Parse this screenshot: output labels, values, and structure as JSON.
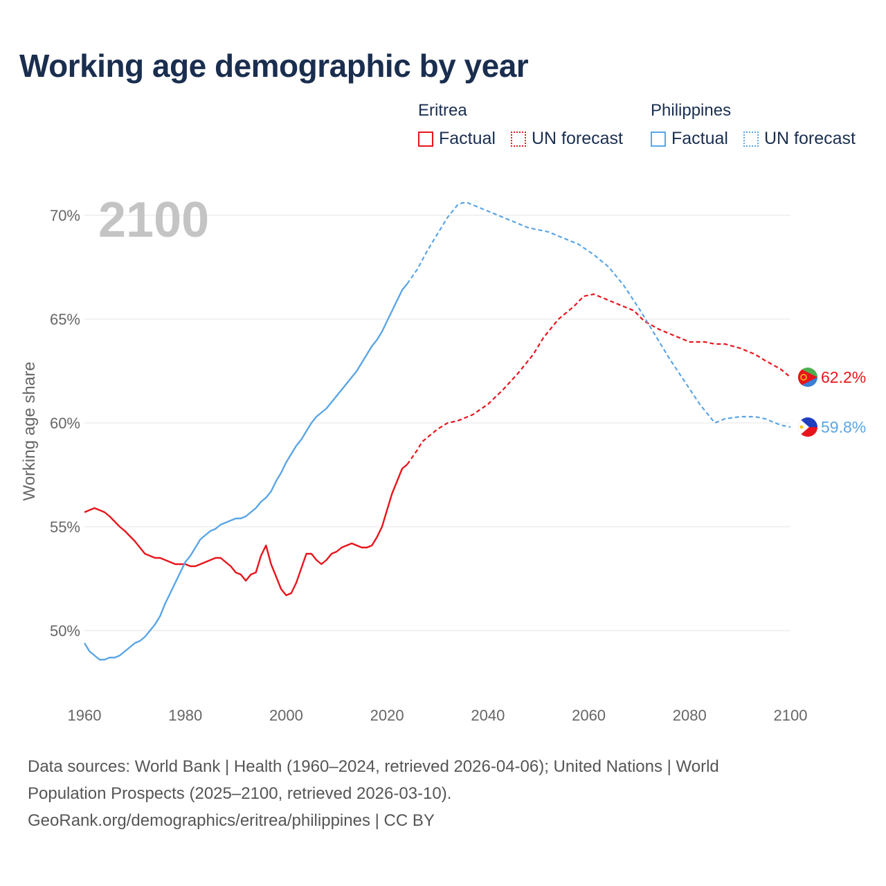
{
  "title": "Working age demographic by year",
  "legend": {
    "groups": [
      {
        "country": "Eritrea",
        "factual_label": "Factual",
        "forecast_label": "UN forecast",
        "color": "#e8141b"
      },
      {
        "country": "Philippines",
        "factual_label": "Factual",
        "forecast_label": "UN forecast",
        "color": "#5aa5e6"
      }
    ]
  },
  "year_display": "2100",
  "footer": {
    "line1": "Data sources: World Bank | Health (1960–2024, retrieved 2026-04-06); United Nations | World",
    "line2": "Population Prospects (2025–2100, retrieved 2026-03-10).",
    "line3": "GeoRank.org/demographics/eritrea/philippines | CC BY"
  },
  "chart_data": {
    "type": "line",
    "title": "Working age demographic by year",
    "xlabel": "",
    "ylabel": "Working age share",
    "xlim": [
      1960,
      2100
    ],
    "ylim": [
      47,
      72
    ],
    "x_ticks": [
      1960,
      1980,
      2000,
      2020,
      2040,
      2060,
      2080,
      2100
    ],
    "x_tick_labels": [
      "1960",
      "1980",
      "2000",
      "2020",
      "2040",
      "2060",
      "2080",
      "2100"
    ],
    "y_ticks": [
      50,
      55,
      60,
      65,
      70
    ],
    "y_tick_labels": [
      "50%",
      "55%",
      "60%",
      "65%",
      "70%"
    ],
    "grid": true,
    "legend_position": "top-right",
    "series": [
      {
        "name": "Eritrea",
        "color": "#e8141b",
        "end_label": "62.2%",
        "factual": [
          [
            1960,
            55.7
          ],
          [
            1962,
            55.9
          ],
          [
            1964,
            55.7
          ],
          [
            1965,
            55.5
          ],
          [
            1967,
            55.0
          ],
          [
            1968,
            54.8
          ],
          [
            1970,
            54.3
          ],
          [
            1971,
            54.0
          ],
          [
            1972,
            53.7
          ],
          [
            1974,
            53.5
          ],
          [
            1975,
            53.5
          ],
          [
            1977,
            53.3
          ],
          [
            1978,
            53.2
          ],
          [
            1980,
            53.2
          ],
          [
            1981,
            53.1
          ],
          [
            1982,
            53.1
          ],
          [
            1984,
            53.3
          ],
          [
            1986,
            53.5
          ],
          [
            1987,
            53.5
          ],
          [
            1988,
            53.3
          ],
          [
            1989,
            53.1
          ],
          [
            1990,
            52.8
          ],
          [
            1991,
            52.7
          ],
          [
            1992,
            52.4
          ],
          [
            1993,
            52.7
          ],
          [
            1994,
            52.8
          ],
          [
            1995,
            53.6
          ],
          [
            1996,
            54.1
          ],
          [
            1997,
            53.2
          ],
          [
            1998,
            52.6
          ],
          [
            1999,
            52.0
          ],
          [
            2000,
            51.7
          ],
          [
            2001,
            51.8
          ],
          [
            2002,
            52.3
          ],
          [
            2003,
            53.0
          ],
          [
            2004,
            53.7
          ],
          [
            2005,
            53.7
          ],
          [
            2006,
            53.4
          ],
          [
            2007,
            53.2
          ],
          [
            2008,
            53.4
          ],
          [
            2009,
            53.7
          ],
          [
            2010,
            53.8
          ],
          [
            2011,
            54.0
          ],
          [
            2012,
            54.1
          ],
          [
            2013,
            54.2
          ],
          [
            2014,
            54.1
          ],
          [
            2015,
            54.0
          ],
          [
            2016,
            54.0
          ],
          [
            2017,
            54.1
          ],
          [
            2018,
            54.5
          ],
          [
            2019,
            55.0
          ],
          [
            2020,
            55.8
          ],
          [
            2021,
            56.6
          ],
          [
            2022,
            57.2
          ],
          [
            2023,
            57.8
          ],
          [
            2024,
            58.0
          ]
        ],
        "forecast": [
          [
            2024,
            58.0
          ],
          [
            2026,
            58.7
          ],
          [
            2027,
            59.1
          ],
          [
            2030,
            59.7
          ],
          [
            2032,
            60.0
          ],
          [
            2034,
            60.1
          ],
          [
            2037,
            60.4
          ],
          [
            2040,
            60.9
          ],
          [
            2043,
            61.6
          ],
          [
            2046,
            62.4
          ],
          [
            2049,
            63.3
          ],
          [
            2051,
            64.1
          ],
          [
            2054,
            65.0
          ],
          [
            2057,
            65.6
          ],
          [
            2059,
            66.1
          ],
          [
            2061,
            66.2
          ],
          [
            2064,
            65.9
          ],
          [
            2067,
            65.6
          ],
          [
            2069,
            65.4
          ],
          [
            2071,
            64.9
          ],
          [
            2074,
            64.5
          ],
          [
            2077,
            64.2
          ],
          [
            2080,
            63.9
          ],
          [
            2083,
            63.9
          ],
          [
            2085,
            63.8
          ],
          [
            2087,
            63.8
          ],
          [
            2090,
            63.6
          ],
          [
            2093,
            63.3
          ],
          [
            2095,
            63.0
          ],
          [
            2098,
            62.6
          ],
          [
            2100,
            62.2
          ]
        ]
      },
      {
        "name": "Philippines",
        "color": "#5aa5e6",
        "end_label": "59.8%",
        "factual": [
          [
            1960,
            49.4
          ],
          [
            1961,
            49.0
          ],
          [
            1963,
            48.6
          ],
          [
            1964,
            48.6
          ],
          [
            1965,
            48.7
          ],
          [
            1966,
            48.7
          ],
          [
            1967,
            48.8
          ],
          [
            1968,
            49.0
          ],
          [
            1969,
            49.2
          ],
          [
            1970,
            49.4
          ],
          [
            1971,
            49.5
          ],
          [
            1972,
            49.7
          ],
          [
            1973,
            50.0
          ],
          [
            1974,
            50.3
          ],
          [
            1975,
            50.7
          ],
          [
            1976,
            51.3
          ],
          [
            1977,
            51.8
          ],
          [
            1978,
            52.3
          ],
          [
            1979,
            52.8
          ],
          [
            1980,
            53.3
          ],
          [
            1981,
            53.6
          ],
          [
            1982,
            54.0
          ],
          [
            1983,
            54.4
          ],
          [
            1984,
            54.6
          ],
          [
            1985,
            54.8
          ],
          [
            1986,
            54.9
          ],
          [
            1987,
            55.1
          ],
          [
            1988,
            55.2
          ],
          [
            1989,
            55.3
          ],
          [
            1990,
            55.4
          ],
          [
            1991,
            55.4
          ],
          [
            1992,
            55.5
          ],
          [
            1993,
            55.7
          ],
          [
            1994,
            55.9
          ],
          [
            1995,
            56.2
          ],
          [
            1996,
            56.4
          ],
          [
            1997,
            56.7
          ],
          [
            1998,
            57.2
          ],
          [
            1999,
            57.6
          ],
          [
            2000,
            58.1
          ],
          [
            2001,
            58.5
          ],
          [
            2002,
            58.9
          ],
          [
            2003,
            59.2
          ],
          [
            2004,
            59.6
          ],
          [
            2005,
            60.0
          ],
          [
            2006,
            60.3
          ],
          [
            2007,
            60.5
          ],
          [
            2008,
            60.7
          ],
          [
            2009,
            61.0
          ],
          [
            2010,
            61.3
          ],
          [
            2011,
            61.6
          ],
          [
            2012,
            61.9
          ],
          [
            2013,
            62.2
          ],
          [
            2014,
            62.5
          ],
          [
            2015,
            62.9
          ],
          [
            2016,
            63.3
          ],
          [
            2017,
            63.7
          ],
          [
            2018,
            64.0
          ],
          [
            2019,
            64.4
          ],
          [
            2020,
            64.9
          ],
          [
            2021,
            65.4
          ],
          [
            2022,
            65.9
          ],
          [
            2023,
            66.4
          ],
          [
            2024,
            66.7
          ]
        ],
        "forecast": [
          [
            2024,
            66.7
          ],
          [
            2026,
            67.4
          ],
          [
            2028,
            68.3
          ],
          [
            2030,
            69.1
          ],
          [
            2032,
            69.9
          ],
          [
            2034,
            70.5
          ],
          [
            2035,
            70.6
          ],
          [
            2036,
            70.6
          ],
          [
            2038,
            70.4
          ],
          [
            2040,
            70.2
          ],
          [
            2043,
            69.9
          ],
          [
            2046,
            69.6
          ],
          [
            2048,
            69.4
          ],
          [
            2050,
            69.3
          ],
          [
            2052,
            69.2
          ],
          [
            2055,
            68.9
          ],
          [
            2058,
            68.6
          ],
          [
            2061,
            68.1
          ],
          [
            2064,
            67.5
          ],
          [
            2067,
            66.6
          ],
          [
            2070,
            65.5
          ],
          [
            2073,
            64.3
          ],
          [
            2076,
            63.1
          ],
          [
            2079,
            62.0
          ],
          [
            2082,
            60.9
          ],
          [
            2085,
            60.0
          ],
          [
            2087,
            60.2
          ],
          [
            2090,
            60.3
          ],
          [
            2093,
            60.3
          ],
          [
            2095,
            60.2
          ],
          [
            2098,
            59.9
          ],
          [
            2100,
            59.8
          ]
        ]
      }
    ]
  }
}
